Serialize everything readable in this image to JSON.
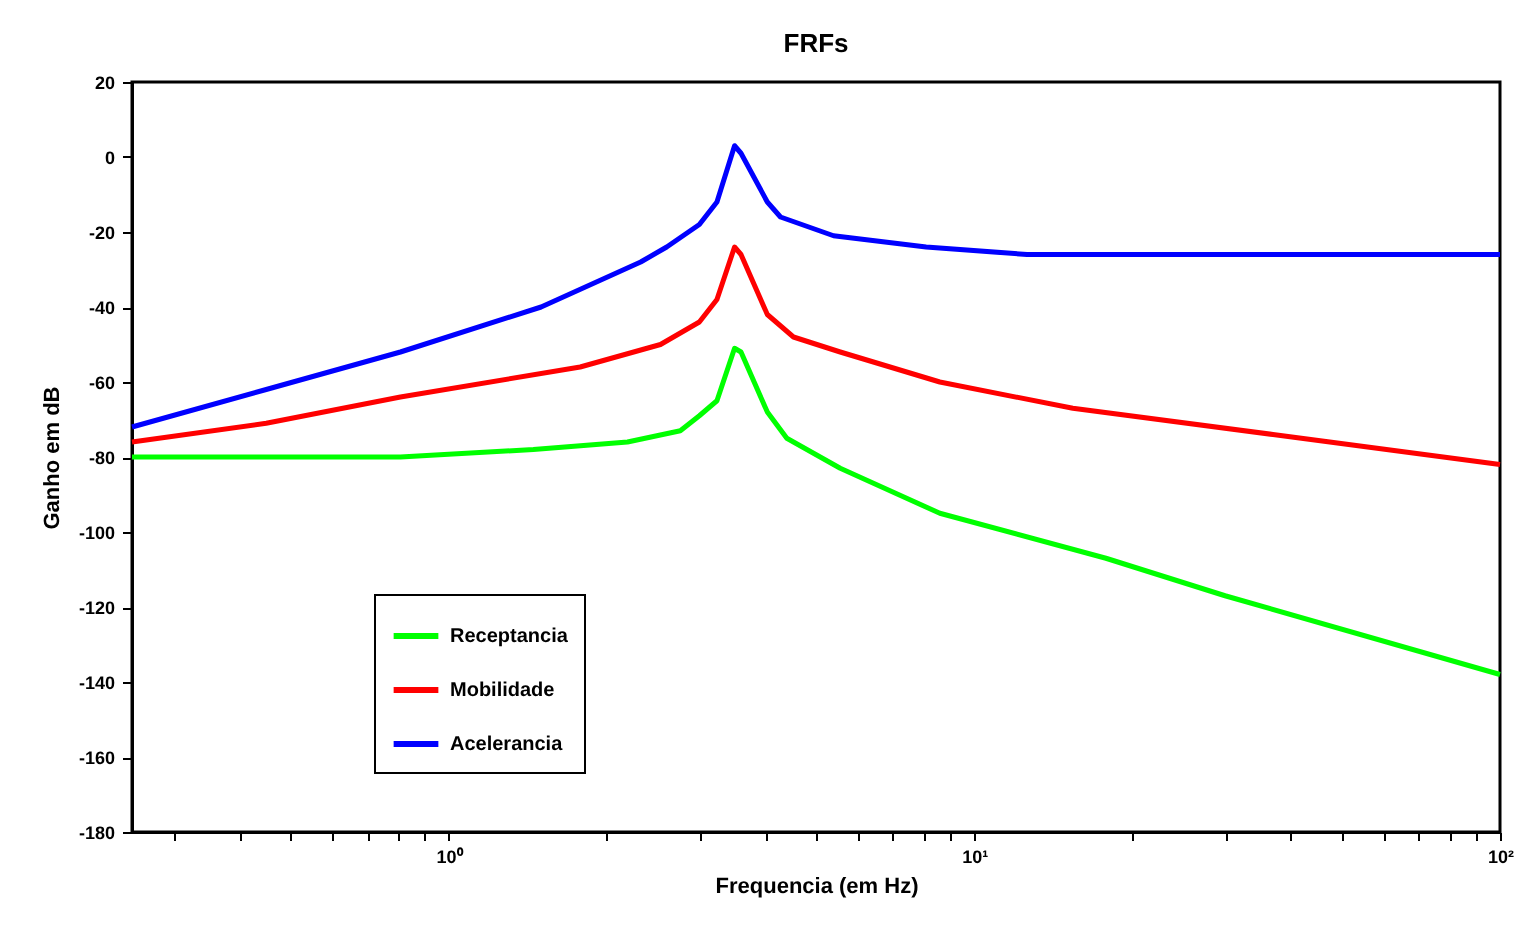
{
  "chart_data": {
    "type": "line",
    "title": "FRFs",
    "xlabel": "Frequencia (em Hz)",
    "ylabel": "Ganho em dB",
    "log": "x",
    "xlim": [
      0.25,
      100
    ],
    "ylim": [
      -180,
      20
    ],
    "xticks": [
      {
        "value": 0.3,
        "label": null
      },
      {
        "value": 0.4,
        "label": null
      },
      {
        "value": 0.5,
        "label": null
      },
      {
        "value": 0.6,
        "label": null
      },
      {
        "value": 0.7,
        "label": null
      },
      {
        "value": 0.8,
        "label": null
      },
      {
        "value": 0.9,
        "label": null
      },
      {
        "value": 1,
        "label": "10⁰"
      },
      {
        "value": 2,
        "label": null
      },
      {
        "value": 3,
        "label": null
      },
      {
        "value": 4,
        "label": null
      },
      {
        "value": 5,
        "label": null
      },
      {
        "value": 6,
        "label": null
      },
      {
        "value": 7,
        "label": null
      },
      {
        "value": 8,
        "label": null
      },
      {
        "value": 9,
        "label": null
      },
      {
        "value": 10,
        "label": "10¹"
      },
      {
        "value": 20,
        "label": null
      },
      {
        "value": 30,
        "label": null
      },
      {
        "value": 40,
        "label": null
      },
      {
        "value": 50,
        "label": null
      },
      {
        "value": 60,
        "label": null
      },
      {
        "value": 70,
        "label": null
      },
      {
        "value": 80,
        "label": null
      },
      {
        "value": 90,
        "label": null
      },
      {
        "value": 100,
        "label": "10²"
      }
    ],
    "yticks": [
      -180,
      -160,
      -140,
      -120,
      -100,
      -80,
      -60,
      -40,
      -20,
      0,
      20
    ],
    "grid": false,
    "legend": "bottom left",
    "series": [
      {
        "name": "Receptancia",
        "color": "#00ff00",
        "x": [
          0.25,
          0.81,
          1.45,
          2.19,
          2.76,
          3.0,
          3.24,
          3.5,
          3.6,
          4.04,
          4.4,
          5.56,
          8.6,
          17.8,
          30,
          100
        ],
        "values": [
          -80,
          -80,
          -78,
          -76,
          -73,
          -69,
          -65,
          -51,
          -52,
          -68,
          -75,
          -83,
          -95,
          -107,
          -117,
          -138
        ]
      },
      {
        "name": "Mobilidade",
        "color": "#ff0000",
        "x": [
          0.25,
          0.45,
          0.81,
          1.78,
          2.53,
          3.0,
          3.24,
          3.5,
          3.6,
          4.04,
          4.53,
          5.56,
          8.6,
          15.4,
          37,
          100
        ],
        "values": [
          -76,
          -71,
          -64,
          -56,
          -50,
          -44,
          -38,
          -24,
          -26,
          -42,
          -48,
          -52,
          -60,
          -67,
          -74,
          -82
        ]
      },
      {
        "name": "Acelerancia",
        "color": "#0000ff",
        "x": [
          0.25,
          0.45,
          0.81,
          1.5,
          2.32,
          2.6,
          3.0,
          3.24,
          3.5,
          3.6,
          4.04,
          4.28,
          5.4,
          8.1,
          12.6,
          17.8,
          100
        ],
        "values": [
          -72,
          -62,
          -52,
          -40,
          -28,
          -24,
          -18,
          -12,
          3,
          1,
          -12,
          -16,
          -21,
          -24,
          -26,
          -26,
          -26
        ]
      }
    ]
  }
}
